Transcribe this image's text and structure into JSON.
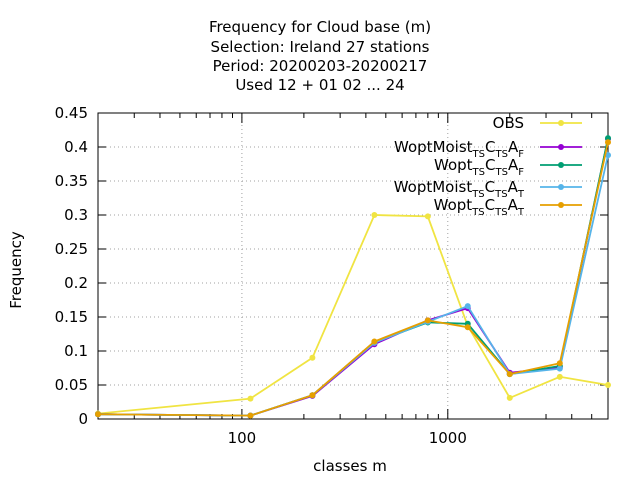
{
  "chart_data": {
    "type": "line",
    "title": [
      "Frequency  for Cloud base (m)",
      "Selection: Ireland      27 stations",
      "Period: 20200203-20200217",
      "Used  12 + 01 02 ... 24"
    ],
    "xlabel": "classes m",
    "ylabel": "Frequency",
    "x_scale": "log",
    "xlim": [
      20,
      6000
    ],
    "ylim": [
      0,
      0.45
    ],
    "grid": true,
    "legend_position": "top-right",
    "x_ticks": [
      {
        "value": 100,
        "label": "100"
      },
      {
        "value": 1000,
        "label": "1000"
      }
    ],
    "y_ticks": [
      "0",
      "0.05",
      "0.1",
      "0.15",
      "0.2",
      "0.25",
      "0.3",
      "0.35",
      "0.4",
      "0.45"
    ],
    "x": [
      20,
      110,
      220,
      440,
      800,
      1250,
      2000,
      3500,
      6000
    ],
    "series": [
      {
        "name": "OBS",
        "color": "#f0e442",
        "values": [
          0.008,
          0.03,
          0.09,
          0.3,
          0.298,
          0.137,
          0.031,
          0.062,
          0.05
        ]
      },
      {
        "name": "WoptMoist_TS C_TS A_F",
        "base": "WoptMoist",
        "parts": [
          [
            "TS",
            "C"
          ],
          [
            "TS",
            "A"
          ],
          [
            "F",
            ""
          ]
        ],
        "color": "#9400d3",
        "values": [
          0.007,
          0.005,
          0.034,
          0.11,
          0.145,
          0.163,
          0.068,
          0.076,
          0.412
        ]
      },
      {
        "name": "Wopt_TS C_TS A_F",
        "base": "Wopt",
        "parts": [
          [
            "TS",
            "C"
          ],
          [
            "TS",
            "A"
          ],
          [
            "F",
            ""
          ]
        ],
        "color": "#009e73",
        "values": [
          0.007,
          0.005,
          0.035,
          0.113,
          0.142,
          0.14,
          0.066,
          0.078,
          0.413
        ]
      },
      {
        "name": "WoptMoist_TS C_TS A_T",
        "base": "WoptMoist",
        "parts": [
          [
            "TS",
            "C"
          ],
          [
            "TS",
            "A"
          ],
          [
            "T",
            ""
          ]
        ],
        "color": "#56b4e9",
        "values": [
          0.007,
          0.005,
          0.035,
          0.112,
          0.143,
          0.166,
          0.066,
          0.074,
          0.388
        ]
      },
      {
        "name": "Wopt_TS C_TS A_T",
        "base": "Wopt",
        "parts": [
          [
            "TS",
            "C"
          ],
          [
            "TS",
            "A"
          ],
          [
            "T",
            ""
          ]
        ],
        "color": "#e69f00",
        "values": [
          0.007,
          0.005,
          0.035,
          0.114,
          0.145,
          0.135,
          0.066,
          0.082,
          0.407
        ]
      }
    ]
  }
}
